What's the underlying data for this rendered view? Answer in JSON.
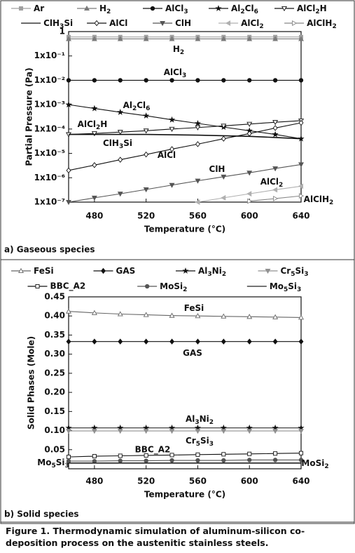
{
  "chart_data": [
    {
      "type": "line",
      "yscale": "log",
      "xlabel": "Temperature (°C)",
      "ylabel": "Partial Pressure (Pa)",
      "panel_label": "a) Gaseous species",
      "x": [
        460,
        480,
        500,
        520,
        540,
        560,
        580,
        600,
        620,
        640
      ],
      "xlim": [
        460,
        640
      ],
      "xticks": [
        480,
        520,
        560,
        600,
        640
      ],
      "ylim": [
        1e-07,
        1
      ],
      "yticks": [
        {
          "value": 1e-07,
          "label": "1x10⁻⁷"
        },
        {
          "value": 1e-06,
          "label": "1x10⁻⁶"
        },
        {
          "value": 1e-05,
          "label": "1x10⁻⁵"
        },
        {
          "value": 0.0001,
          "label": "1x10⁻⁴"
        },
        {
          "value": 0.001,
          "label": "1x10⁻³"
        },
        {
          "value": 0.01,
          "label": "1x10⁻²"
        },
        {
          "value": 0.1,
          "label": "1x10⁻¹"
        },
        1
      ],
      "series": [
        {
          "name": "Ar",
          "color": "#a0a0a0",
          "marker": "square",
          "filled": true,
          "values": [
            0.6,
            0.6,
            0.6,
            0.6,
            0.6,
            0.6,
            0.6,
            0.6,
            0.6,
            0.6
          ]
        },
        {
          "name": "H2",
          "color": "#7a7a7a",
          "marker": "triangle",
          "filled": true,
          "values": [
            0.5,
            0.5,
            0.5,
            0.5,
            0.5,
            0.5,
            0.5,
            0.5,
            0.5,
            0.5
          ]
        },
        {
          "name": "AlCl3",
          "color": "#111111",
          "marker": "circle",
          "filled": true,
          "values": [
            0.01,
            0.01,
            0.01,
            0.01,
            0.01,
            0.01,
            0.01,
            0.01,
            0.01,
            0.01
          ]
        },
        {
          "name": "Al2Cl6",
          "color": "#111111",
          "marker": "star",
          "filled": true,
          "values": [
            0.001,
            0.0007,
            0.00049,
            0.00035,
            0.00024,
            0.00017,
            0.00012,
            8.5e-05,
            6e-05,
            4e-05
          ]
        },
        {
          "name": "AlCl2H",
          "color": "#111111",
          "marker": "triangle-down",
          "filled": false,
          "values": [
            6e-05,
            6.6e-05,
            7.5e-05,
            8.5e-05,
            0.0001,
            0.000115,
            0.000135,
            0.00016,
            0.00019,
            0.00022
          ]
        },
        {
          "name": "ClH3Si",
          "color": "#111111",
          "marker": "none",
          "filled": true,
          "values": [
            6e-05,
            6e-05,
            6e-05,
            6e-05,
            5.8e-05,
            5.6e-05,
            5.3e-05,
            5e-05,
            4.5e-05,
            4e-05
          ]
        },
        {
          "name": "AlCl",
          "color": "#111111",
          "marker": "diamond",
          "filled": false,
          "values": [
            2e-06,
            3.3e-06,
            5.5e-06,
            9e-06,
            1.5e-05,
            2.4e-05,
            4e-05,
            6.5e-05,
            0.00011,
            0.00018
          ]
        },
        {
          "name": "ClH",
          "color": "#555555",
          "marker": "triangle-down",
          "filled": true,
          "values": [
            1e-07,
            1.5e-07,
            2.2e-07,
            3.3e-07,
            5e-07,
            7.5e-07,
            1.1e-06,
            1.6e-06,
            2.4e-06,
            3.5e-06
          ]
        },
        {
          "name": "AlCl2",
          "color": "#b0b0b0",
          "marker": "triangle-left",
          "filled": true,
          "values": [
            null,
            null,
            null,
            null,
            null,
            1e-07,
            1.5e-07,
            2.2e-07,
            3.2e-07,
            4.5e-07
          ]
        },
        {
          "name": "AlClH2",
          "color": "#888888",
          "marker": "triangle-right",
          "filled": false,
          "values": [
            null,
            null,
            null,
            null,
            null,
            null,
            null,
            1.1e-07,
            1.4e-07,
            1.8e-07
          ]
        }
      ],
      "annotations": [
        "H2",
        "AlCl3",
        "Al2Cl6",
        "AlCl2H",
        "ClH3Si",
        "AlCl",
        "ClH",
        "AlCl2",
        "AlClH2"
      ]
    },
    {
      "type": "line",
      "yscale": "linear",
      "xlabel": "Temperature (°C)",
      "ylabel": "Solid Phases (Mole)",
      "panel_label": "b) Solid species",
      "x": [
        460,
        480,
        500,
        520,
        540,
        560,
        580,
        600,
        620,
        640
      ],
      "xlim": [
        460,
        640
      ],
      "xticks": [
        480,
        520,
        560,
        600,
        640
      ],
      "ylim": [
        0,
        0.45
      ],
      "yticks": [
        0.05,
        {
          "value": 0.1,
          "label": "0.10"
        },
        0.15,
        {
          "value": 0.2,
          "label": "0.20"
        },
        0.25,
        {
          "value": 0.3,
          "label": "0.30"
        },
        0.35,
        {
          "value": 0.4,
          "label": "0.40"
        },
        0.45
      ],
      "series": [
        {
          "name": "FeSi",
          "color": "#666666",
          "marker": "triangle",
          "filled": false,
          "values": [
            0.412,
            0.408,
            0.405,
            0.403,
            0.401,
            0.4,
            0.399,
            0.398,
            0.397,
            0.396
          ]
        },
        {
          "name": "GAS",
          "color": "#111111",
          "marker": "diamond",
          "filled": true,
          "values": [
            0.333,
            0.333,
            0.333,
            0.333,
            0.333,
            0.333,
            0.333,
            0.333,
            0.333,
            0.333
          ]
        },
        {
          "name": "Al3Ni2",
          "color": "#111111",
          "marker": "star",
          "filled": true,
          "values": [
            0.107,
            0.107,
            0.107,
            0.107,
            0.107,
            0.107,
            0.107,
            0.107,
            0.107,
            0.107
          ]
        },
        {
          "name": "Cr5Si3",
          "color": "#909090",
          "marker": "triangle-down",
          "filled": true,
          "values": [
            0.099,
            0.099,
            0.099,
            0.099,
            0.099,
            0.099,
            0.099,
            0.099,
            0.099,
            0.099
          ]
        },
        {
          "name": "BBC_A2",
          "color": "#111111",
          "marker": "square",
          "filled": false,
          "values": [
            0.031,
            0.033,
            0.034,
            0.035,
            0.036,
            0.037,
            0.038,
            0.039,
            0.04,
            0.041
          ]
        },
        {
          "name": "MoSi2",
          "color": "#555555",
          "marker": "circle",
          "filled": true,
          "values": [
            0.02,
            0.02,
            0.021,
            0.021,
            0.022,
            0.022,
            0.022,
            0.023,
            0.023,
            0.023
          ]
        },
        {
          "name": "Mo5Si3",
          "color": "#222222",
          "marker": "none",
          "filled": true,
          "values": [
            0.015,
            0.015,
            0.015,
            0.015,
            0.015,
            0.015,
            0.015,
            0.015,
            0.015,
            0.015
          ]
        }
      ],
      "annotations": [
        "FeSi",
        "GAS",
        "Al3Ni2",
        "Cr5Si3",
        "BBC_A2",
        "Mo5Si3",
        "MoSi2"
      ]
    }
  ],
  "caption": "Figure 1. Thermodynamic simulation of aluminum-silicon co-deposition process on the austenitic stainless steels."
}
